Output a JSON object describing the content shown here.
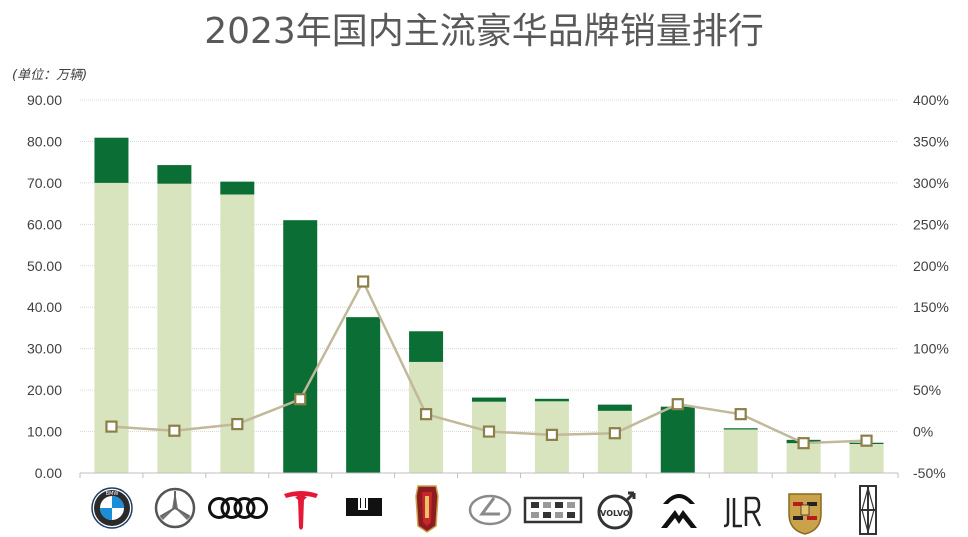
{
  "chart_data": {
    "type": "bar",
    "title": "2023年国内主流豪华品牌销量排行",
    "unit_label": "(单位：万辆)",
    "categories": [
      "BMW",
      "Mercedes-Benz",
      "Audi",
      "Tesla",
      "Li Auto",
      "Hongqi",
      "Lexus",
      "Cadillac",
      "Volvo",
      "NIO",
      "JLR",
      "Porsche",
      "Lincoln"
    ],
    "series": [
      {
        "values": [
          70.0,
          69.8,
          67.2,
          0,
          0,
          26.8,
          17.2,
          17.3,
          15.0,
          0,
          10.5,
          7.2,
          7.0
        ],
        "color": "#d7e4bd"
      },
      {
        "values": [
          10.9,
          4.5,
          3.1,
          61.0,
          37.6,
          7.4,
          1.0,
          0.6,
          1.5,
          16.0,
          0.3,
          0.8,
          0.3
        ],
        "color": "#0a6e35"
      },
      {
        "values": [
          6,
          1,
          9,
          39,
          181,
          21,
          0,
          -4,
          -2,
          33,
          21,
          -14,
          -11
        ],
        "axis": "right",
        "color": "#c2b89a"
      }
    ],
    "ylim": [
      0,
      90
    ],
    "yticks": [
      "0.00",
      "10.00",
      "20.00",
      "30.00",
      "40.00",
      "50.00",
      "60.00",
      "70.00",
      "80.00",
      "90.00"
    ],
    "y2lim": [
      -50,
      400
    ],
    "y2ticks": [
      "-50%",
      "0%",
      "50%",
      "100%",
      "150%",
      "200%",
      "250%",
      "300%",
      "350%",
      "400%"
    ],
    "grid": true,
    "logos": [
      "bmw-logo",
      "mercedes-logo",
      "audi-logo",
      "tesla-logo",
      "li-auto-logo",
      "hongqi-logo",
      "lexus-logo",
      "cadillac-logo",
      "volvo-logo",
      "nio-logo",
      "jlr-logo",
      "porsche-logo",
      "lincoln-logo"
    ]
  }
}
